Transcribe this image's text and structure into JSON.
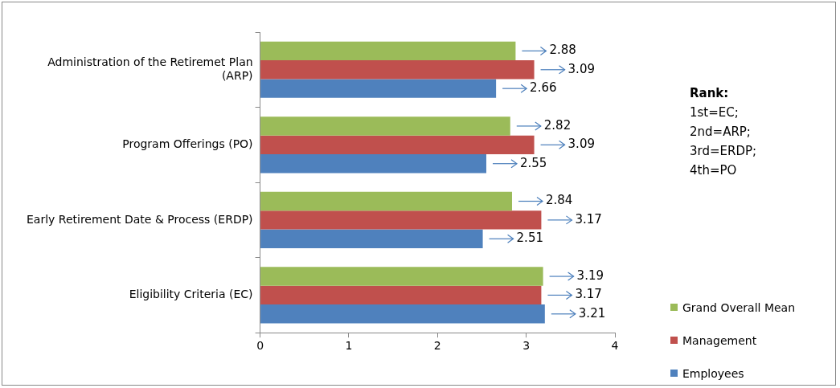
{
  "chart_data": {
    "type": "bar",
    "orientation": "horizontal",
    "categories": [
      "Administration of the Retiremet Plan (ARP)",
      "Program Offerings (PO)",
      "Early Retirement Date & Process (ERDP)",
      "Eligibility Criteria (EC)"
    ],
    "series": [
      {
        "name": "Grand Overall Mean",
        "color": "#9bbb59",
        "values": [
          2.88,
          2.82,
          2.84,
          3.19
        ]
      },
      {
        "name": "Management",
        "color": "#c0504d",
        "values": [
          3.09,
          3.09,
          3.17,
          3.17
        ]
      },
      {
        "name": "Employees",
        "color": "#4f81bd",
        "values": [
          2.66,
          2.55,
          2.51,
          3.21
        ]
      }
    ],
    "xlim": [
      0,
      4
    ],
    "xticks": [
      0,
      1,
      2,
      3,
      4
    ],
    "grid": false,
    "legend": "bottom right",
    "data_labels": true,
    "annotations": [
      "Rank:",
      "1st=EC;",
      "2nd=ARP;",
      "3rd=ERDP;",
      "4th=PO"
    ]
  }
}
